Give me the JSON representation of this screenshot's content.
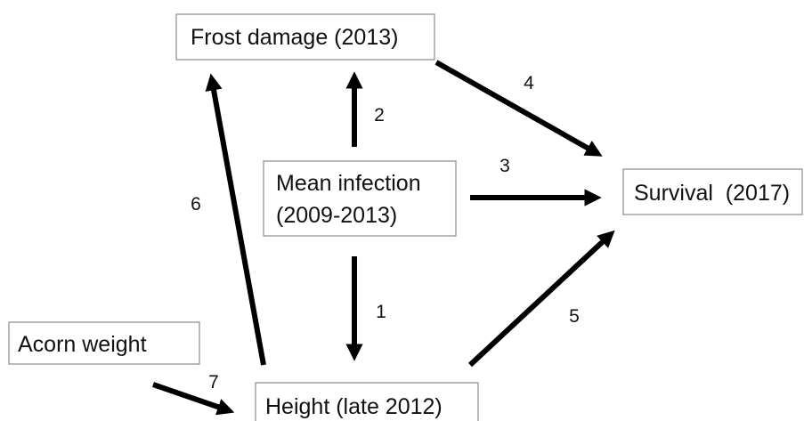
{
  "nodes": [
    {
      "lines": [
        "Frost damage (2013)"
      ]
    },
    {
      "lines": [
        "Mean infection",
        "(2009-2013)"
      ]
    },
    {
      "lines": [
        "Survival  (2017)"
      ]
    },
    {
      "lines": [
        "Acorn weight"
      ]
    },
    {
      "lines": [
        "Height (late 2012)"
      ]
    }
  ],
  "edges": [
    {
      "label": "1"
    },
    {
      "label": "2"
    },
    {
      "label": "3"
    },
    {
      "label": "4"
    },
    {
      "label": "5"
    },
    {
      "label": "6"
    },
    {
      "label": "7"
    }
  ]
}
